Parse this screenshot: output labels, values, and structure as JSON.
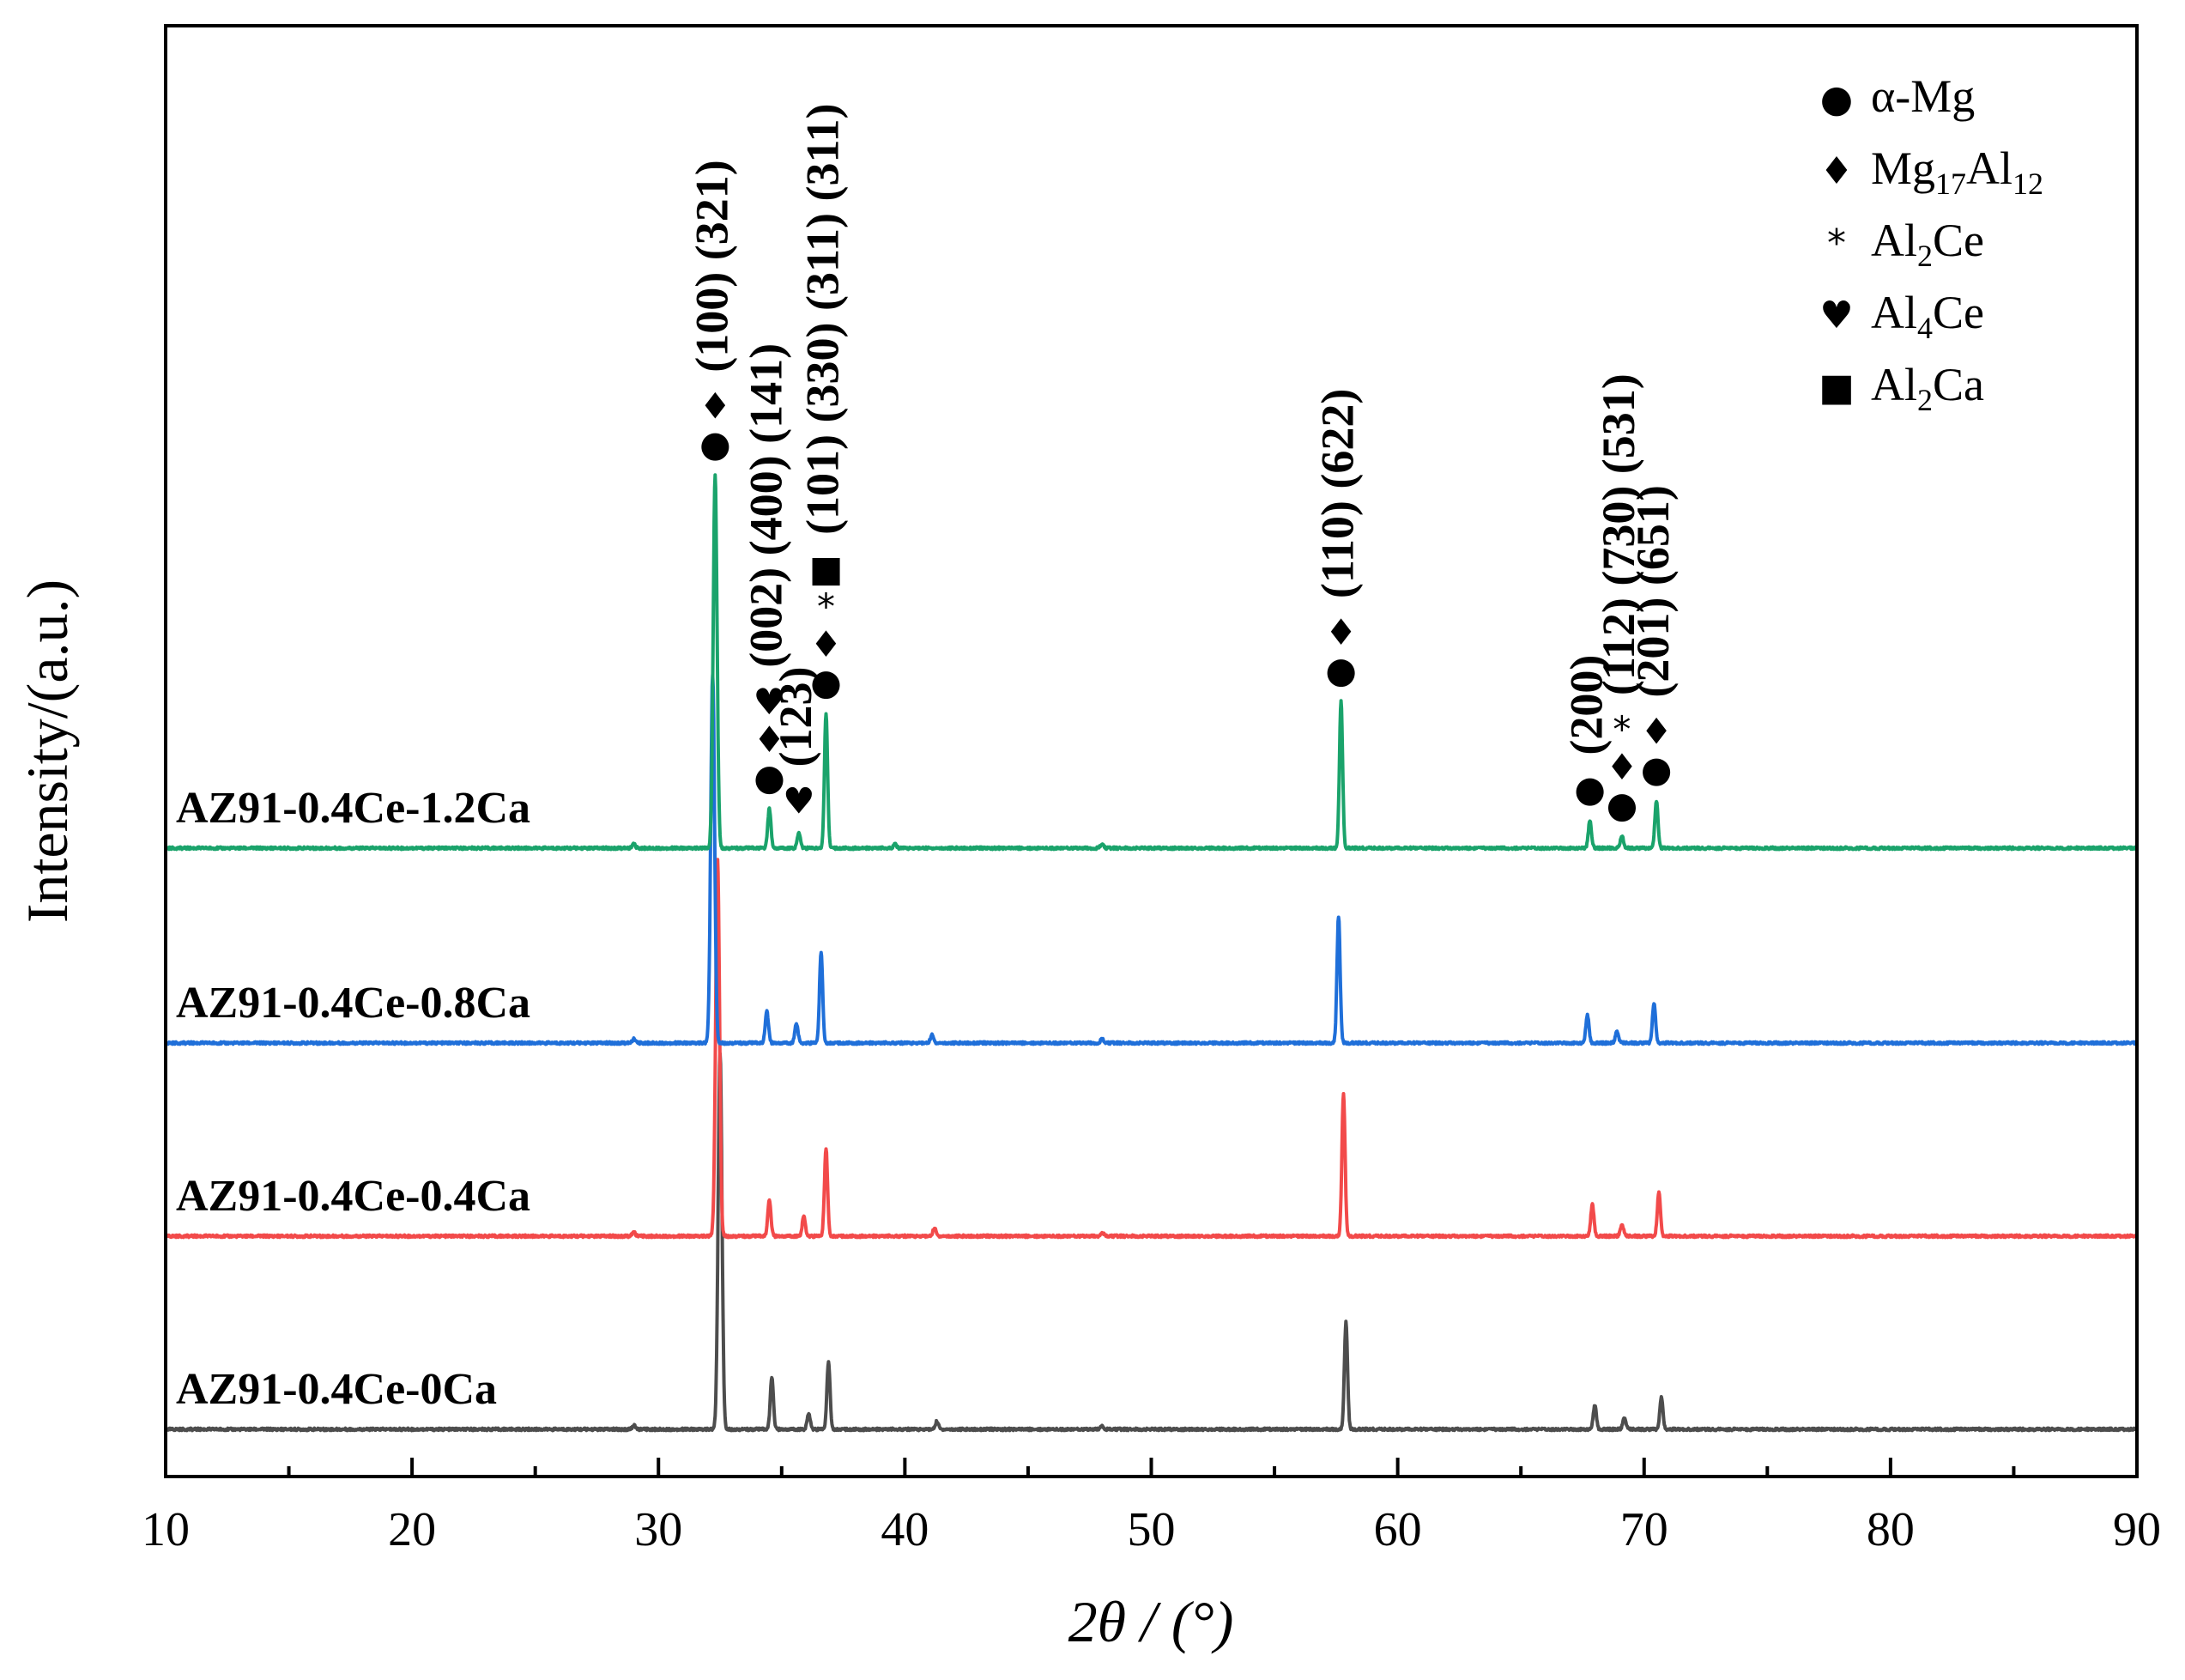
{
  "chart_data": {
    "type": "line",
    "xlabel": "2θ / (°)",
    "ylabel": "Intensity/(a.u.)",
    "xlim": [
      10,
      90
    ],
    "x_ticks": [
      10,
      20,
      30,
      40,
      50,
      60,
      70,
      80,
      90
    ],
    "x_tick_labels": [
      "10",
      "20",
      "30",
      "40",
      "50",
      "60",
      "70",
      "80",
      "90"
    ],
    "yticks_shown": false,
    "legend": {
      "position": "top-right",
      "entries": [
        {
          "symbol": "circle",
          "glyph": "●",
          "name": "α-Mg",
          "base": "α-Mg",
          "sub": ""
        },
        {
          "symbol": "diamond",
          "glyph": "♦",
          "name": "Mg17Al12",
          "base": "Mg",
          "sub": "17",
          "base2": "Al",
          "sub2": "12"
        },
        {
          "symbol": "asterisk",
          "glyph": "*",
          "name": "Al2Ce",
          "base": "Al",
          "sub": "2",
          "base2": "Ce"
        },
        {
          "symbol": "heart",
          "glyph": "♥",
          "name": "Al4Ce",
          "base": "Al",
          "sub": "4",
          "base2": "Ce"
        },
        {
          "symbol": "square",
          "glyph": "■",
          "name": "Al2Ca",
          "base": "Al",
          "sub": "2",
          "base2": "Ca"
        }
      ]
    },
    "series": [
      {
        "name": "AZ91-0.4Ce-0Ca",
        "color": "#4d4d4d",
        "offset": 0.0,
        "peaks": [
          {
            "x": 29.0,
            "h": 0.01
          },
          {
            "x": 32.5,
            "h": 0.95
          },
          {
            "x": 34.6,
            "h": 0.13
          },
          {
            "x": 36.1,
            "h": 0.04
          },
          {
            "x": 36.9,
            "h": 0.17
          },
          {
            "x": 41.3,
            "h": 0.02
          },
          {
            "x": 48.0,
            "h": 0.01
          },
          {
            "x": 57.9,
            "h": 0.27
          },
          {
            "x": 68.0,
            "h": 0.06
          },
          {
            "x": 69.2,
            "h": 0.03
          },
          {
            "x": 70.7,
            "h": 0.08
          }
        ]
      },
      {
        "name": "AZ91-0.4Ce-0.4Ca",
        "color": "#f24a4a",
        "offset": 1.0,
        "peaks": [
          {
            "x": 29.0,
            "h": 0.01
          },
          {
            "x": 32.4,
            "h": 0.95
          },
          {
            "x": 34.5,
            "h": 0.09
          },
          {
            "x": 35.9,
            "h": 0.05
          },
          {
            "x": 36.8,
            "h": 0.22
          },
          {
            "x": 41.2,
            "h": 0.02
          },
          {
            "x": 48.0,
            "h": 0.01
          },
          {
            "x": 57.8,
            "h": 0.36
          },
          {
            "x": 67.9,
            "h": 0.08
          },
          {
            "x": 69.1,
            "h": 0.03
          },
          {
            "x": 70.6,
            "h": 0.11
          }
        ]
      },
      {
        "name": "AZ91-0.4Ce-0.8Ca",
        "color": "#1f6fd9",
        "offset": 2.0,
        "peaks": [
          {
            "x": 29.0,
            "h": 0.01
          },
          {
            "x": 32.2,
            "h": 0.93
          },
          {
            "x": 34.4,
            "h": 0.08
          },
          {
            "x": 35.6,
            "h": 0.05
          },
          {
            "x": 36.6,
            "h": 0.23
          },
          {
            "x": 41.1,
            "h": 0.02
          },
          {
            "x": 48.0,
            "h": 0.01
          },
          {
            "x": 57.6,
            "h": 0.32
          },
          {
            "x": 67.7,
            "h": 0.07
          },
          {
            "x": 68.9,
            "h": 0.03
          },
          {
            "x": 70.4,
            "h": 0.1
          }
        ]
      },
      {
        "name": "AZ91-0.4Ce-1.2Ca",
        "color": "#1aa36b",
        "offset": 3.0,
        "peaks": [
          {
            "x": 29.0,
            "h": 0.01
          },
          {
            "x": 32.3,
            "h": 0.94
          },
          {
            "x": 34.5,
            "h": 0.1
          },
          {
            "x": 35.7,
            "h": 0.04
          },
          {
            "x": 36.8,
            "h": 0.34
          },
          {
            "x": 39.6,
            "h": 0.01
          },
          {
            "x": 48.0,
            "h": 0.01
          },
          {
            "x": 57.7,
            "h": 0.37
          },
          {
            "x": 67.8,
            "h": 0.07
          },
          {
            "x": 69.1,
            "h": 0.03
          },
          {
            "x": 70.5,
            "h": 0.12
          }
        ]
      }
    ],
    "annotations": [
      {
        "x": 32.3,
        "symbols": [
          "●",
          "♦"
        ],
        "label": "(100) (321)"
      },
      {
        "x": 34.5,
        "symbols": [
          "●",
          "♦",
          "♥"
        ],
        "label": "(002) (400) (141)"
      },
      {
        "x": 35.7,
        "symbols": [
          "♥"
        ],
        "label": "(123)"
      },
      {
        "x": 36.8,
        "symbols": [
          "●",
          "♦",
          "*",
          "■"
        ],
        "label": "(101) (330) (311) (311)"
      },
      {
        "x": 57.7,
        "symbols": [
          "●",
          "♦"
        ],
        "label": "(110) (622)"
      },
      {
        "x": 67.8,
        "symbols": [
          "●"
        ],
        "label": "(200)"
      },
      {
        "x": 69.1,
        "symbols": [
          "●",
          "♦",
          "*"
        ],
        "label": "(112) (730) (531)"
      },
      {
        "x": 70.5,
        "symbols": [
          "●",
          "♦"
        ],
        "label": "(201) (651)"
      }
    ]
  }
}
